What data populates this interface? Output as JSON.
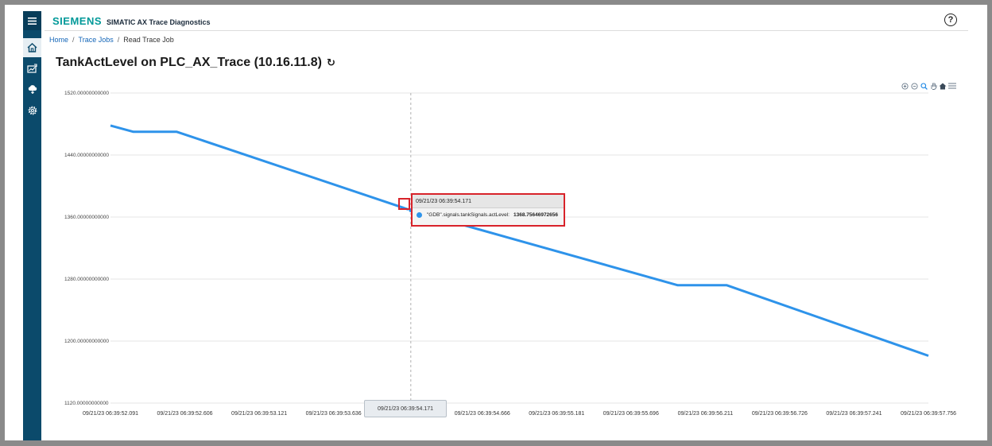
{
  "app": {
    "brand": "SIEMENS",
    "title": "SIMATIC AX Trace Diagnostics",
    "help_label": "?"
  },
  "sidebar": {
    "items": [
      {
        "name": "menu",
        "icon": "hamburger-icon"
      },
      {
        "name": "home",
        "icon": "home-icon",
        "active": true
      },
      {
        "name": "trace",
        "icon": "trace-chart-icon"
      },
      {
        "name": "cloud",
        "icon": "cloud-upload-icon"
      },
      {
        "name": "settings",
        "icon": "gear-icon"
      }
    ]
  },
  "breadcrumb": {
    "home": "Home",
    "trace_jobs": "Trace Jobs",
    "current": "Read Trace Job",
    "separator": "/"
  },
  "page": {
    "title": "TankActLevel on PLC_AX_Trace (10.16.11.8)",
    "refresh_icon": "refresh-icon"
  },
  "toolbar": {
    "icons": [
      "zoom-in-icon",
      "zoom-out-icon",
      "zoom-select-icon",
      "pan-icon",
      "reset-zoom-home-icon",
      "chart-menu-icon"
    ]
  },
  "colors": {
    "series": "#2e93ea",
    "highlight": "#d8232a",
    "rail": "#0b4a6b",
    "brand": "#009999"
  },
  "tooltip": {
    "time": "09/21/23 06:39:54.171",
    "series": "\"GDB\".signals.tankSignals.actLevel:",
    "value": "1368.75646972656"
  },
  "chart_data": {
    "type": "line",
    "series": [
      {
        "name": "\"GDB\".signals.tankSignals.actLevel",
        "x": [
          "09/21/23 06:39:52.091",
          "09/21/23 06:39:52.25",
          "09/21/23 06:39:52.55",
          "09/21/23 06:39:54.171",
          "09/21/23 06:39:56.02",
          "09/21/23 06:39:56.36",
          "09/21/23 06:39:57.756"
        ],
        "values": [
          1478,
          1470,
          1470,
          1368.75646972656,
          1272,
          1272,
          1181
        ]
      }
    ],
    "x_ticks": [
      "09/21/23 06:39:52.091",
      "09/21/23 06:39:52.606",
      "09/21/23 06:39:53.121",
      "09/21/23 06:39:53.636",
      "09/21/23 06:39:54.171",
      "09/21/23 06:39:54.666",
      "09/21/23 06:39:55.181",
      "09/21/23 06:39:55.696",
      "09/21/23 06:39:56.211",
      "09/21/23 06:39:56.726",
      "09/21/23 06:39:57.241",
      "09/21/23 06:39:57.756"
    ],
    "y_ticks": [
      "1520.00000000000",
      "1440.00000000000",
      "1360.00000000000",
      "1280.00000000000",
      "1200.00000000000",
      "1120.00000000000"
    ],
    "ylim": [
      1120,
      1520
    ],
    "highlighted_x": "09/21/23 06:39:54.171",
    "grid": true,
    "legend": "none"
  }
}
